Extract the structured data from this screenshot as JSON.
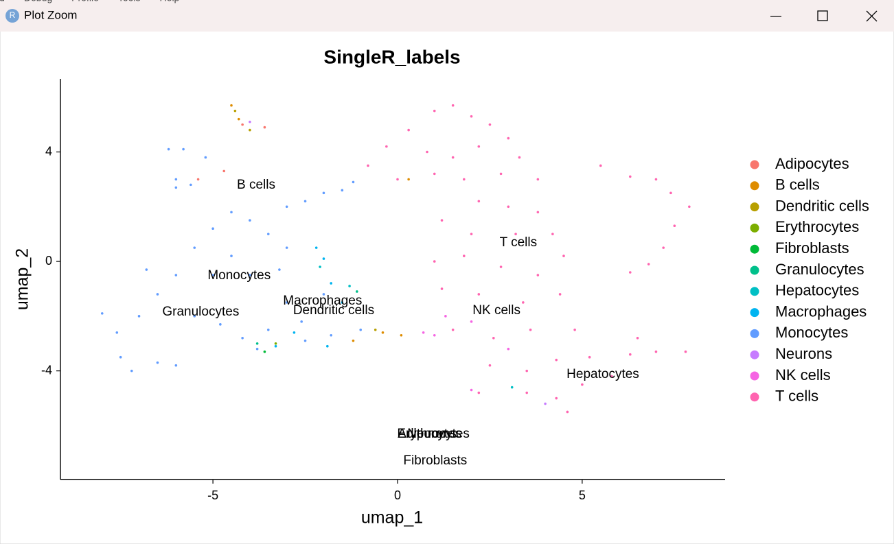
{
  "window": {
    "title": "Plot Zoom",
    "menu": [
      "ld",
      "Debug",
      "Profile",
      "Tools",
      "Help"
    ]
  },
  "chart_data": {
    "type": "scatter",
    "title": "SingleR_labels",
    "x_label": "umap_1",
    "y_label": "umap_2",
    "xlim": [
      -9.13,
      8.87
    ],
    "ylim": [
      -7.97,
      6.67
    ],
    "xticks": [
      -5,
      0,
      5
    ],
    "yticks": [
      -4,
      0,
      4
    ],
    "legend": "right",
    "series": [
      {
        "name": "Adipocytes",
        "color": "#F8766D",
        "x": [
          -4.2,
          -3.6,
          -5.4,
          -4.7
        ],
        "y": [
          5.0,
          4.9,
          3.0,
          3.3
        ]
      },
      {
        "name": "B cells",
        "color": "#DE8C00",
        "x": [
          -4.5,
          -4.3,
          0.1,
          -0.4,
          -1.2,
          0.3
        ],
        "y": [
          5.7,
          5.2,
          -2.7,
          -2.6,
          -2.9,
          3.0
        ]
      },
      {
        "name": "Dendritic cells",
        "color": "#B79F00",
        "x": [
          -4.4,
          -4.0,
          -0.6
        ],
        "y": [
          5.5,
          4.8,
          -2.5
        ]
      },
      {
        "name": "Erythrocytes",
        "color": "#7CAE00",
        "x": [
          -3.3
        ],
        "y": [
          -3.0
        ]
      },
      {
        "name": "Fibroblasts",
        "color": "#00BA38",
        "x": [
          -3.6
        ],
        "y": [
          -3.3
        ]
      },
      {
        "name": "Granulocytes",
        "color": "#00C08B",
        "x": [
          -3.8,
          -1.1
        ],
        "y": [
          -3.0,
          -1.1
        ]
      },
      {
        "name": "Hepatocytes",
        "color": "#00BFC4",
        "x": [
          -2.1,
          -1.3,
          3.1
        ],
        "y": [
          -0.2,
          -0.9,
          -4.6
        ]
      },
      {
        "name": "Macrophages",
        "color": "#00B4F0",
        "x": [
          -2.2,
          -2.0,
          -1.8,
          -1.5,
          -2.8,
          -1.9,
          -3.3
        ],
        "y": [
          0.5,
          0.1,
          -0.8,
          -1.5,
          -2.6,
          -3.1,
          -3.1
        ]
      },
      {
        "name": "Monocytes",
        "color": "#619CFF",
        "x": [
          -8,
          -7.6,
          -7.5,
          -7.2,
          -6.5,
          -6.0,
          -7.0,
          -6.5,
          -6.0,
          -5.5,
          -5.0,
          -4.5,
          -4.0,
          -3.5,
          -3.0,
          -4.5,
          -5.0,
          -4.0,
          -3.2,
          -5.5,
          -4.8,
          -4.2,
          -3.5,
          -3.8,
          -2.6,
          -6.0,
          -5.6,
          -6.2,
          -5.8,
          -6.0,
          -3.0,
          -2.5,
          -2.0,
          -1.5,
          -1.2,
          -1.8,
          -2.5,
          -1.0,
          -2.0,
          -3.0,
          -6.8,
          -5.2
        ],
        "y": [
          -1.9,
          -2.6,
          -3.5,
          -4.0,
          -3.7,
          -3.8,
          -2.0,
          -1.2,
          -0.5,
          0.5,
          1.2,
          1.8,
          1.5,
          1.0,
          0.5,
          0.2,
          -0.5,
          -0.5,
          -0.3,
          -2.0,
          -2.3,
          -2.8,
          -2.5,
          -3.2,
          -2.2,
          2.7,
          2.8,
          4.1,
          4.1,
          3.0,
          2.0,
          2.2,
          2.5,
          2.6,
          2.9,
          -2.7,
          -2.9,
          -2.5,
          -1.2,
          -1.5,
          -0.3,
          3.8
        ]
      },
      {
        "name": "Neurons",
        "color": "#C77CFF",
        "x": [
          -4.0,
          4.0
        ],
        "y": [
          5.1,
          -5.2
        ]
      },
      {
        "name": "NK cells",
        "color": "#F564E3",
        "x": [
          1.0,
          1.3,
          2.0,
          0.7,
          2.0,
          3.0
        ],
        "y": [
          -2.7,
          -2.0,
          -2.2,
          -2.6,
          -4.7,
          -3.2
        ]
      },
      {
        "name": "T cells",
        "color": "#FF64B0",
        "x": [
          1.0,
          1.5,
          2.0,
          2.5,
          3.0,
          0.3,
          -0.3,
          0.8,
          1.5,
          2.2,
          3.3,
          3.8,
          2.8,
          1.8,
          1.0,
          2.2,
          3.0,
          3.8,
          1.2,
          4.2,
          2.0,
          3.2,
          1.0,
          1.8,
          2.8,
          3.8,
          4.5,
          1.2,
          2.2,
          3.4,
          4.4,
          1.5,
          2.6,
          3.6,
          4.8,
          2.5,
          3.5,
          4.3,
          5.2,
          3.5,
          4.3,
          5.0,
          4.6,
          5.8,
          6.3,
          7.0,
          7.8,
          6.5,
          5.5,
          6.3,
          7.0,
          7.4,
          7.9,
          7.5,
          7.2,
          6.8,
          6.3,
          2.2,
          -0.8,
          0.0
        ],
        "y": [
          5.5,
          5.7,
          5.3,
          5.0,
          4.5,
          4.8,
          4.2,
          4.0,
          3.8,
          4.2,
          3.8,
          3.0,
          3.2,
          3.0,
          3.2,
          2.2,
          2.0,
          1.8,
          1.5,
          1.0,
          1.0,
          1.0,
          0.0,
          0.2,
          -0.2,
          -0.5,
          0.2,
          -1.0,
          -1.2,
          -1.5,
          -1.2,
          -2.5,
          -2.8,
          -2.5,
          -2.5,
          -3.8,
          -4.0,
          -3.6,
          -3.5,
          -4.8,
          -5.0,
          -4.5,
          -5.5,
          -4.2,
          -3.4,
          -3.3,
          -3.3,
          -2.8,
          3.5,
          3.1,
          3.0,
          2.5,
          2.0,
          1.3,
          0.5,
          -0.1,
          -0.4,
          -4.8,
          3.5,
          3.0
        ]
      }
    ],
    "annotations": [
      {
        "text": "B cells",
        "x": -3.83,
        "y": 2.78
      },
      {
        "text": "T cells",
        "x": 3.27,
        "y": 0.68
      },
      {
        "text": "Monocytes",
        "x": -4.29,
        "y": -0.53
      },
      {
        "text": "Macrophages",
        "x": -2.03,
        "y": -1.45
      },
      {
        "text": "Granulocytes",
        "x": -5.33,
        "y": -1.85
      },
      {
        "text": "Dendritic cells",
        "x": -1.73,
        "y": -1.8
      },
      {
        "text": "NK cells",
        "x": 2.68,
        "y": -1.8
      },
      {
        "text": "Hepatocytes",
        "x": 5.56,
        "y": -4.14
      },
      {
        "text": "Adipocytes",
        "x": 0.87,
        "y": -6.32
      },
      {
        "text": "Erythrocytes",
        "x": 0.97,
        "y": -6.32
      },
      {
        "text": "Neurons",
        "x": 0.93,
        "y": -6.32
      },
      {
        "text": "Fibroblasts",
        "x": 1.02,
        "y": -7.29
      }
    ]
  }
}
